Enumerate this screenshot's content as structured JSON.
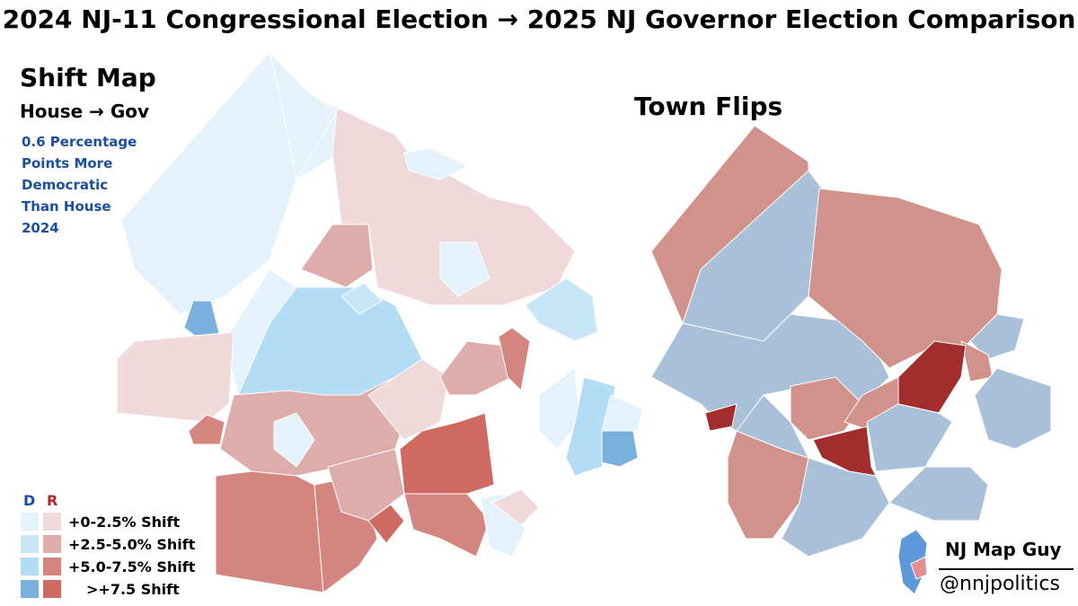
{
  "header": {
    "title": "2024 NJ-11 Congressional Election → 2025 NJ Governor Election Comparison"
  },
  "shift_map": {
    "heading": "Shift Map",
    "subheading": "House → Gov",
    "note_lines": [
      "0.6 Percentage",
      "Points More",
      "Democratic",
      "Than House",
      "2024"
    ]
  },
  "town_flips": {
    "heading": "Town Flips"
  },
  "legend": {
    "d": "D",
    "r": "R",
    "labels": [
      "+0-2.5% Shift",
      "+2.5-5.0% Shift",
      "+5.0-7.5% Shift",
      ">+7.5 Shift"
    ]
  },
  "branding": {
    "name": "NJ Map Guy",
    "handle": "@nnjpolitics"
  }
}
